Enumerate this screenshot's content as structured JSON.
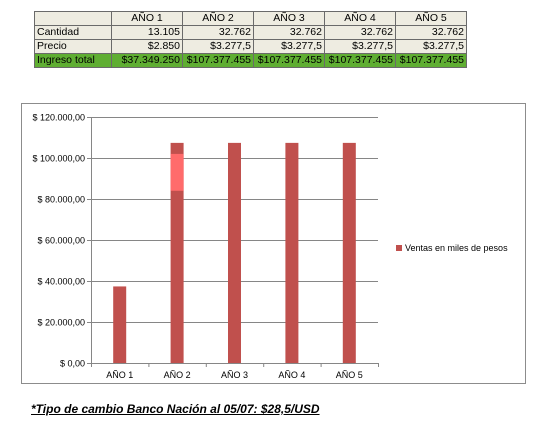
{
  "table": {
    "headers": [
      "AÑO 1",
      "AÑO 2",
      "AÑO 3",
      "AÑO 4",
      "AÑO 5"
    ],
    "rows": [
      {
        "label": "Cantidad",
        "cells": [
          "13.105",
          "32.762",
          "32.762",
          "32.762",
          "32.762"
        ]
      },
      {
        "label": "Precio",
        "cells": [
          "$2.850",
          "$3.277,5",
          "$3.277,5",
          "$3.277,5",
          "$3.277,5"
        ]
      },
      {
        "label": "Ingreso total",
        "cells": [
          "$37.349.250",
          "$107.377.455",
          "$107.377.455",
          "$107.377.455",
          "$107.377.455"
        ]
      }
    ]
  },
  "chart_data": {
    "type": "bar",
    "categories": [
      "AÑO 1",
      "AÑO 2",
      "AÑO 3",
      "AÑO 4",
      "AÑO 5"
    ],
    "series": [
      {
        "name": "Ventas en miles de pesos",
        "values": [
          37349.25,
          107377.455,
          107377.455,
          107377.455,
          107377.455
        ]
      }
    ],
    "y_ticks": [
      "$ 0,00",
      "$ 20.000,00",
      "$ 40.000,00",
      "$ 60.000,00",
      "$ 80.000,00",
      "$ 100.000,00",
      "$ 120.000,00"
    ],
    "ylim": [
      0,
      120000
    ],
    "grid": true,
    "legend_position": "right",
    "colors": {
      "bar": "#c0504d",
      "highlight": "#ff6b6b"
    }
  },
  "footnote": "*Tipo de cambio Banco Nación al 05/07: $28,5/USD"
}
